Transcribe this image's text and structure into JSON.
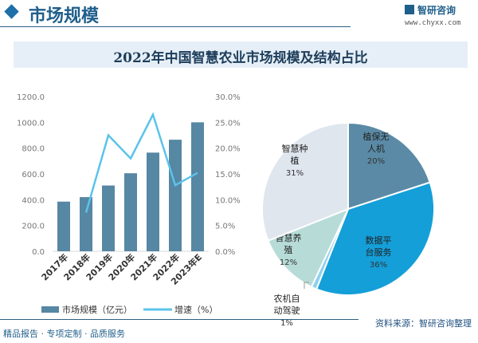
{
  "header": {
    "section_title": "市场规模",
    "logo_text": "智研咨询",
    "logo_url": "www.chyxx.com"
  },
  "title": "2022年中国智慧农业市场规模及结构占比",
  "chart_data": [
    {
      "type": "bar+line",
      "categories": [
        "2017年",
        "2018年",
        "2019年",
        "2020年",
        "2021年",
        "2022年",
        "2023年E"
      ],
      "series": [
        {
          "name": "市场规模（亿元）",
          "type": "bar",
          "axis": "left",
          "color": "#5687a3",
          "values": [
            385,
            420,
            510,
            605,
            765,
            865,
            1000
          ]
        },
        {
          "name": "增速（%）",
          "type": "line",
          "axis": "right",
          "color": "#5bc3ea",
          "values": [
            null,
            7.5,
            22.5,
            18.0,
            26.5,
            12.8,
            15.2
          ]
        }
      ],
      "y_left": {
        "range": [
          0,
          1200
        ],
        "ticks": [
          "0.0",
          "200.0",
          "400.0",
          "600.0",
          "800.0",
          "1000.0",
          "1200.0"
        ]
      },
      "y_right": {
        "range": [
          0,
          30
        ],
        "ticks": [
          "0.0%",
          "5.0%",
          "10.0%",
          "15.0%",
          "20.0%",
          "25.0%",
          "30.0%"
        ]
      },
      "legend": {
        "position": "bottom",
        "items": [
          "市场规模（亿元）",
          "增速（%）"
        ]
      },
      "grid": false
    },
    {
      "type": "pie",
      "start": "top-clockwise",
      "slices": [
        {
          "label_lines": [
            "植保无",
            "人机"
          ],
          "value": 20,
          "pct": "20%",
          "color": "#5a8aa6"
        },
        {
          "label_lines": [
            "数据平",
            "台服务"
          ],
          "value": 36,
          "pct": "36%",
          "color": "#149fd9"
        },
        {
          "label_lines": [
            "农机自",
            "动驾驶"
          ],
          "value": 1,
          "pct": "1%",
          "color": "#8fd0ef"
        },
        {
          "label_lines": [
            "智慧养",
            "殖"
          ],
          "value": 12,
          "pct": "12%",
          "color": "#b7dcd8"
        },
        {
          "label_lines": [
            "智慧种",
            "植"
          ],
          "value": 31,
          "pct": "31%",
          "color": "#dfe6ee"
        }
      ]
    }
  ],
  "source": "资料来源：智研咨询整理",
  "footer": "精品报告 · 专项定制 · 品质服务"
}
